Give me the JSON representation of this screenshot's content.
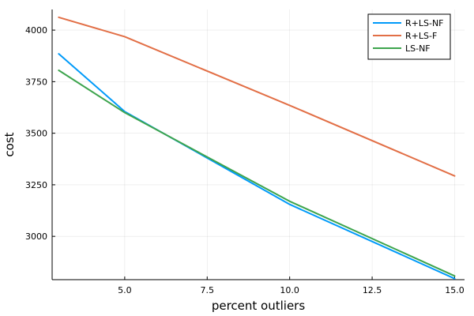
{
  "chart_data": {
    "type": "line",
    "xlabel": "percent outliers",
    "ylabel": "cost",
    "xlim": [
      2.8,
      15.3
    ],
    "ylim": [
      2790,
      4100
    ],
    "xticks": [
      5.0,
      7.5,
      10.0,
      12.5,
      15.0
    ],
    "xtick_labels": [
      "5.0",
      "7.5",
      "10.0",
      "12.5",
      "15.0"
    ],
    "yticks": [
      3000,
      3250,
      3500,
      3750,
      4000
    ],
    "ytick_labels": [
      "3000",
      "3250",
      "3500",
      "3750",
      "4000"
    ],
    "grid": true,
    "legend_position": "top-right",
    "x": [
      3,
      5,
      10,
      15
    ],
    "series": [
      {
        "name": "R+LS-NF",
        "color": "#009af9",
        "values": [
          3885,
          3605,
          3155,
          2795
        ]
      },
      {
        "name": "R+LS-F",
        "color": "#e26f46",
        "values": [
          4062,
          3968,
          3635,
          3293
        ]
      },
      {
        "name": "LS-NF",
        "color": "#3da44d",
        "values": [
          3805,
          3600,
          3170,
          2808
        ]
      }
    ]
  }
}
